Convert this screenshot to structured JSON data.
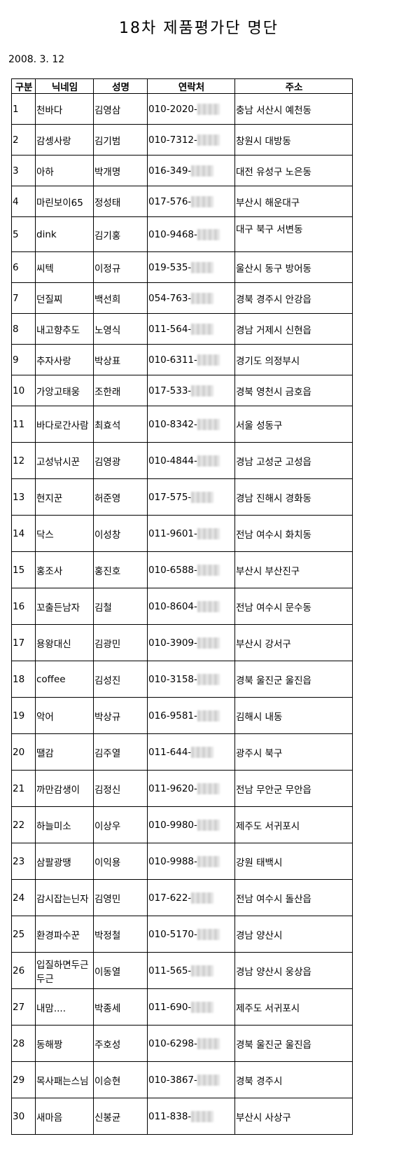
{
  "title": "18차 제품평가단 명단",
  "date": "2008. 3. 12",
  "columns": [
    "구분",
    "닉네임",
    "성명",
    "연락처",
    "주소"
  ],
  "rows": [
    {
      "no": "1",
      "nick": "천바다",
      "name": "김영삼",
      "phone": "010-2020-",
      "addr": "충남 서산시 예천동"
    },
    {
      "no": "2",
      "nick": "감셍사랑",
      "name": "김기범",
      "phone": "010-7312-",
      "addr": "창원시 대방동"
    },
    {
      "no": "3",
      "nick": "아하",
      "name": "박개명",
      "phone": "016-349-",
      "addr": "대전 유성구 노은동"
    },
    {
      "no": "4",
      "nick": "마린보이65",
      "name": "정성태",
      "phone": "017-576-",
      "addr": "부산시 해운대구"
    },
    {
      "no": "5",
      "nick": "dink",
      "name": "김기홍",
      "phone": "010-9468-",
      "addr": "대구 북구 서변동"
    },
    {
      "no": "6",
      "nick": "씨텍",
      "name": "이정규",
      "phone": "019-535-",
      "addr": "울산시 동구 방어동"
    },
    {
      "no": "7",
      "nick": "던질찌",
      "name": "백선희",
      "phone": "054-763-",
      "addr": "경북 경주시 안강읍"
    },
    {
      "no": "8",
      "nick": "내고향추도",
      "name": "노영식",
      "phone": "011-564-",
      "addr": "경남 거제시 신현읍"
    },
    {
      "no": "9",
      "nick": "추자사랑",
      "name": "박상표",
      "phone": "010-6311-",
      "addr": "경기도 의정부시"
    },
    {
      "no": "10",
      "nick": "가앙고태웅",
      "name": "조한래",
      "phone": "017-533-",
      "addr": "경북 영천시  금호읍"
    },
    {
      "no": "11",
      "nick": "바다로간사람",
      "name": "최효석",
      "phone": "010-8342-",
      "addr": "서울 성동구"
    },
    {
      "no": "12",
      "nick": "고성낚시꾼",
      "name": "김영광",
      "phone": "010-4844-",
      "addr": "경남 고성군 고성읍"
    },
    {
      "no": "13",
      "nick": "현지꾼",
      "name": "허준영",
      "phone": "017-575-",
      "addr": "경남 진해시 경화동"
    },
    {
      "no": "14",
      "nick": "닥스",
      "name": "이성창",
      "phone": "011-9601-",
      "addr": "전남 여수시 화치동"
    },
    {
      "no": "15",
      "nick": "홍조사",
      "name": "홍진호",
      "phone": "010-6588-",
      "addr": "부산시 부산진구"
    },
    {
      "no": "16",
      "nick": "꼬출든남자",
      "name": "김철",
      "phone": "010-8604-",
      "addr": "전남 여수시 문수동"
    },
    {
      "no": "17",
      "nick": "용왕대신",
      "name": "김광민",
      "phone": "010-3909-",
      "addr": "부산시 강서구"
    },
    {
      "no": "18",
      "nick": "coffee",
      "name": "김성진",
      "phone": "010-3158-",
      "addr": "경북 울진군 울진읍"
    },
    {
      "no": "19",
      "nick": "악어",
      "name": "박상규",
      "phone": "016-9581-",
      "addr": "김해시 내동"
    },
    {
      "no": "20",
      "nick": "땔감",
      "name": "김주열",
      "phone": "011-644-",
      "addr": "광주시 북구"
    },
    {
      "no": "21",
      "nick": "까만감생이",
      "name": "김정신",
      "phone": "011-9620-",
      "addr": "전남 무안군 무안읍"
    },
    {
      "no": "22",
      "nick": "하늘미소",
      "name": "이상우",
      "phone": "010-9980-",
      "addr": "제주도 서귀포시"
    },
    {
      "no": "23",
      "nick": "삼팔광땡",
      "name": "이익용",
      "phone": "010-9988-",
      "addr": "강원 태백시"
    },
    {
      "no": "24",
      "nick": "감시잡는닌자",
      "name": "김영민",
      "phone": "017-622-",
      "addr": "전남 여수시 돌산읍"
    },
    {
      "no": "25",
      "nick": "환경파수꾼",
      "name": "박정철",
      "phone": "010-5170-",
      "addr": "경남 양산시"
    },
    {
      "no": "26",
      "nick": "입질하면두근두근",
      "name": "이동열",
      "phone": "011-565-",
      "addr": "경남 양산시 웅상읍"
    },
    {
      "no": "27",
      "nick": "내맘....",
      "name": "박종세",
      "phone": "011-690-",
      "addr": "제주도 서귀포시"
    },
    {
      "no": "28",
      "nick": "동해짱",
      "name": "주호성",
      "phone": "010-6298-",
      "addr": "경북 울진군 울진읍"
    },
    {
      "no": "29",
      "nick": "목사패는스님",
      "name": "이승현",
      "phone": "010-3867-",
      "addr": "경북 경주시"
    },
    {
      "no": "30",
      "nick": "새마음",
      "name": "신봉균",
      "phone": "011-838-",
      "addr": "부산시 사상구"
    }
  ]
}
